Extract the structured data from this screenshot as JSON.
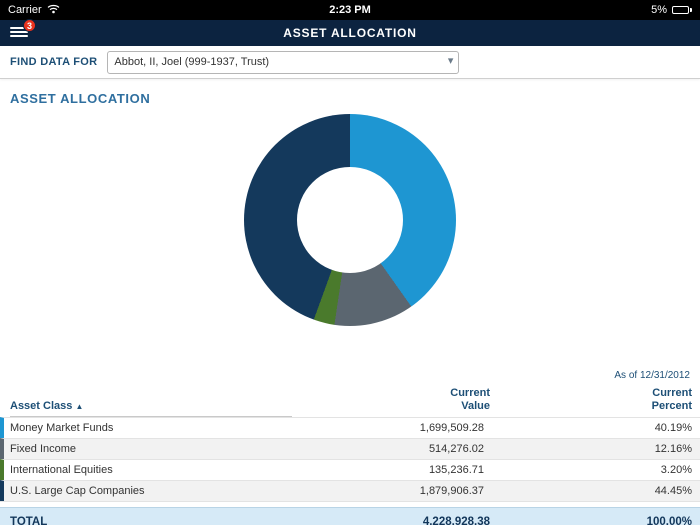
{
  "status_bar": {
    "carrier": "Carrier",
    "time": "2:23 PM",
    "battery_percent": "5%"
  },
  "nav": {
    "title": "ASSET ALLOCATION",
    "menu_badge": "3"
  },
  "find_data": {
    "label": "FIND DATA FOR",
    "selected": "Abbot, II, Joel (999-1937, Trust)"
  },
  "section": {
    "title": "ASSET ALLOCATION",
    "as_of": "As of 12/31/2012"
  },
  "chart_data": {
    "type": "pie",
    "title": "Asset Allocation",
    "donut": true,
    "start_angle_deg": 0,
    "direction": "clockwise",
    "segments": [
      {
        "label": "Money Market Funds",
        "value": 1699509.28,
        "percent": 40.19,
        "color": "#1e96d2"
      },
      {
        "label": "Fixed Income",
        "value": 514276.02,
        "percent": 12.16,
        "color": "#5b6670"
      },
      {
        "label": "International Equities",
        "value": 135236.71,
        "percent": 3.2,
        "color": "#4a7a2c"
      },
      {
        "label": "U.S. Large Cap Companies",
        "value": 1879906.37,
        "percent": 44.45,
        "color": "#14395c"
      }
    ]
  },
  "table": {
    "headers": {
      "asset_class": "Asset Class",
      "sort_caret": "▲",
      "current_value": "Current\nValue",
      "current_percent": "Current\nPercent"
    },
    "rows": [
      {
        "asset_class": "Money Market Funds",
        "value": "1,699,509.28",
        "percent": "40.19%",
        "color": "#1e96d2"
      },
      {
        "asset_class": "Fixed Income",
        "value": "514,276.02",
        "percent": "12.16%",
        "color": "#5b6670"
      },
      {
        "asset_class": "International Equities",
        "value": "135,236.71",
        "percent": "3.20%",
        "color": "#4a7a2c"
      },
      {
        "asset_class": "U.S. Large Cap Companies",
        "value": "1,879,906.37",
        "percent": "44.45%",
        "color": "#14395c"
      }
    ],
    "total": {
      "label": "TOTAL",
      "value": "4,228,928.38",
      "percent": "100.00%"
    }
  }
}
